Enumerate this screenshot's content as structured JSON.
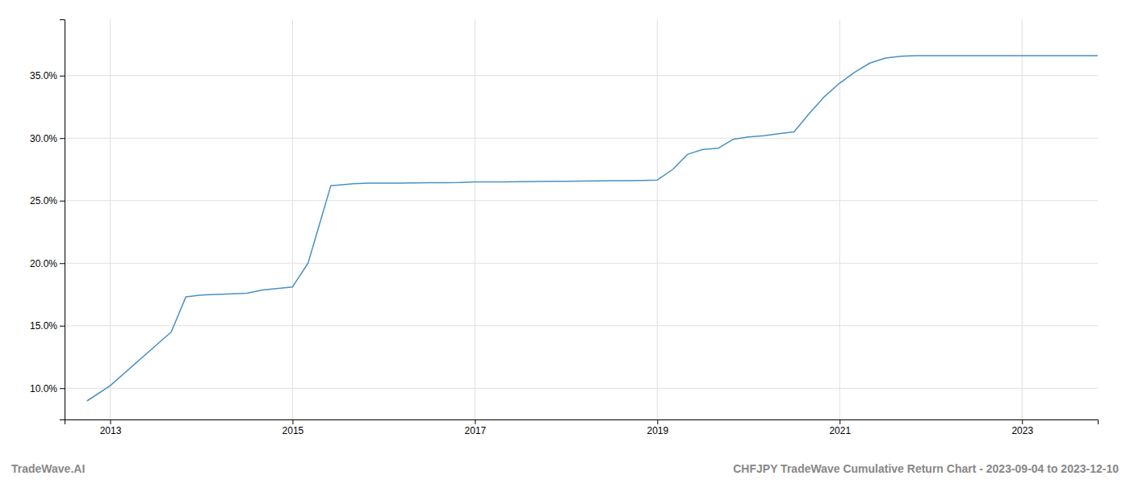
{
  "chart_data": {
    "type": "line",
    "title": "CHFJPY TradeWave Cumulative Return Chart - 2023-09-04 to 2023-12-10",
    "annotations": [
      "TradeWave.AI"
    ],
    "color": "#4a90c4",
    "grid": true,
    "x": [
      2012.75,
      2013.0,
      2013.67,
      2013.83,
      2014.0,
      2014.17,
      2014.5,
      2014.67,
      2015.0,
      2015.17,
      2015.42,
      2015.67,
      2015.83,
      2016.0,
      2016.17,
      2016.33,
      2016.5,
      2016.67,
      2016.83,
      2017.0,
      2017.17,
      2017.33,
      2017.5,
      2017.67,
      2017.83,
      2018.0,
      2018.17,
      2018.33,
      2018.5,
      2018.67,
      2018.83,
      2019.0,
      2019.17,
      2019.33,
      2019.5,
      2019.67,
      2019.83,
      2020.0,
      2020.17,
      2020.33,
      2020.5,
      2020.67,
      2020.83,
      2021.0,
      2021.17,
      2021.33,
      2021.5,
      2021.67,
      2021.83,
      2022.0,
      2022.5,
      2023.0,
      2023.83
    ],
    "values": [
      9.0,
      10.2,
      14.5,
      17.3,
      17.45,
      17.5,
      17.6,
      17.85,
      18.1,
      20.0,
      26.2,
      26.35,
      26.4,
      26.4,
      26.4,
      26.42,
      26.43,
      26.44,
      26.45,
      26.5,
      26.5,
      26.5,
      26.52,
      26.53,
      26.55,
      26.55,
      26.57,
      26.58,
      26.6,
      26.6,
      26.62,
      26.65,
      27.5,
      28.7,
      29.1,
      29.2,
      29.9,
      30.1,
      30.2,
      30.35,
      30.5,
      32.0,
      33.3,
      34.4,
      35.3,
      36.0,
      36.4,
      36.55,
      36.6,
      36.6,
      36.6,
      36.6,
      36.6
    ],
    "xlim": [
      2012.5,
      2023.83
    ],
    "ylim": [
      7.5,
      39.5
    ],
    "xticks": [
      2013,
      2015,
      2017,
      2019,
      2021,
      2023
    ],
    "yticks": [
      {
        "value": 10.0,
        "label": "10.0%"
      },
      {
        "value": 15.0,
        "label": "15.0%"
      },
      {
        "value": 20.0,
        "label": "20.0%"
      },
      {
        "value": 25.0,
        "label": "25.0%"
      },
      {
        "value": 30.0,
        "label": "30.0%"
      },
      {
        "value": 35.0,
        "label": "35.0%"
      }
    ]
  }
}
